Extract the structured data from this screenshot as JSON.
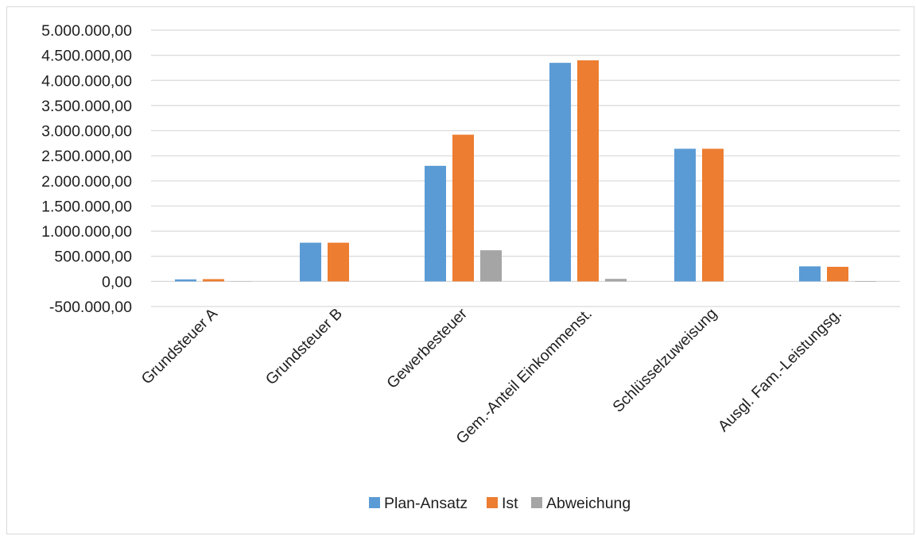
{
  "chart_data": {
    "type": "bar",
    "title": "",
    "xlabel": "",
    "ylabel": "",
    "categories": [
      "Grundsteuer A",
      "Grundsteuer B",
      "Gewerbesteuer",
      "Gem.-Anteil Einkommenst.",
      "Schlüsselzuweisung",
      "Ausgl. Fam.-Leistungsg."
    ],
    "series": [
      {
        "name": "Plan-Ansatz",
        "color": "#5b9bd5",
        "values": [
          40000,
          770000,
          2300000,
          4350000,
          2640000,
          300000
        ]
      },
      {
        "name": "Ist",
        "color": "#ed7d31",
        "values": [
          45000,
          770000,
          2920000,
          4400000,
          2640000,
          290000
        ]
      },
      {
        "name": "Abweichung",
        "color": "#a5a5a5",
        "values": [
          5000,
          0,
          620000,
          50000,
          0,
          -10000
        ]
      }
    ],
    "ylim": [
      -500000,
      5000000
    ],
    "y_ticks": [
      5000000,
      4500000,
      4000000,
      3500000,
      3000000,
      2500000,
      2000000,
      1500000,
      1000000,
      500000,
      0,
      -500000
    ],
    "y_tick_labels": [
      "5.000.000,00",
      "4.500.000,00",
      "4.000.000,00",
      "3.500.000,00",
      "3.000.000,00",
      "2.500.000,00",
      "2.000.000,00",
      "1.500.000,00",
      "1.000.000,00",
      "500.000,00",
      "0,00",
      "-500.000,00"
    ],
    "grid": true,
    "legend_position": "bottom"
  }
}
